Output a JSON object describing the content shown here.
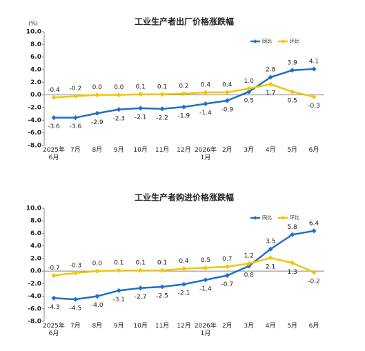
{
  "chart_data": [
    {
      "type": "line",
      "title": "工业生产者出厂价格涨跌幅",
      "y_label": "(%)",
      "categories": [
        "2025年\n6月",
        "7月",
        "8月",
        "9月",
        "10月",
        "11月",
        "12月",
        "2026年\n1月",
        "2月",
        "3月",
        "4月",
        "5月",
        "6月"
      ],
      "series": [
        {
          "name": "同比",
          "color": "#1f6fc5",
          "values": [
            -3.6,
            -3.6,
            -2.9,
            -2.3,
            -2.1,
            -2.2,
            -1.9,
            -1.4,
            -0.9,
            0.5,
            2.8,
            3.9,
            4.1
          ]
        },
        {
          "name": "环比",
          "color": "#f5c400",
          "values": [
            -0.4,
            -0.2,
            0.0,
            0.0,
            0.1,
            0.1,
            0.2,
            0.4,
            0.4,
            1.0,
            1.7,
            0.5,
            -0.3
          ],
          "value_labels": [
            "-0.4",
            "-0.2",
            "0.0",
            "0.0",
            "0.1",
            "0.1",
            "0.2",
            "0.4",
            "0.4",
            "1.0",
            "1.7",
            "0.5",
            "-0.3"
          ]
        }
      ],
      "ylim": [
        -8,
        10
      ],
      "yticks": [
        {
          "value": -8,
          "label": "-8.0"
        },
        {
          "value": -6,
          "label": "-6.0"
        },
        {
          "value": -4,
          "label": "-4.0"
        },
        {
          "value": -2,
          "label": "-2.0"
        },
        {
          "value": 0,
          "label": "0.0"
        },
        {
          "value": 2,
          "label": "2.0"
        },
        {
          "value": 4,
          "label": "4.0"
        },
        {
          "value": 6,
          "label": "6.0"
        },
        {
          "value": 8,
          "label": "8.0"
        },
        {
          "value": 10,
          "label": "10.0"
        }
      ],
      "grid": false,
      "legend": "upper right"
    },
    {
      "type": "line",
      "title": "工业生产者购进价格涨跌幅",
      "categories": [
        "2025年\n6月",
        "7月",
        "8月",
        "9月",
        "10月",
        "11月",
        "12月",
        "2026年\n1月",
        "2月",
        "3月",
        "4月",
        "5月",
        "6月"
      ],
      "series": [
        {
          "name": "同比",
          "color": "#1f6fc5",
          "values": [
            -4.3,
            -4.5,
            -4.0,
            -3.1,
            -2.7,
            -2.5,
            -2.1,
            -1.4,
            -0.7,
            0.8,
            3.5,
            5.8,
            6.4
          ],
          "value_labels": [
            "-4.3",
            "-4.5",
            "-4.0",
            "-3.1",
            "-2.7",
            "-2.5",
            "-2.1",
            "-1.4",
            "-0.7",
            "0.8",
            "3.5",
            "5.8",
            "6.4"
          ]
        },
        {
          "name": "环比",
          "color": "#f5c400",
          "values": [
            -0.7,
            -0.3,
            0.0,
            0.1,
            0.1,
            0.1,
            0.4,
            0.5,
            0.7,
            1.2,
            2.1,
            1.3,
            -0.2
          ],
          "value_labels": [
            "-0.7",
            "-0.3",
            "0.0",
            "0.1",
            "0.1",
            "0.1",
            "0.4",
            "0.5",
            "0.7",
            "1.2",
            "2.1",
            "1.3",
            "-0.2"
          ]
        }
      ],
      "ylim": [
        -8,
        10
      ],
      "yticks": [
        {
          "value": -8,
          "label": "-8.0"
        },
        {
          "value": -6,
          "label": "-6.0"
        },
        {
          "value": -4,
          "label": "-4.0"
        },
        {
          "value": -2,
          "label": "-2.0"
        },
        {
          "value": 0,
          "label": "0.0"
        },
        {
          "value": 2,
          "label": "2.0"
        },
        {
          "value": 4,
          "label": "4.0"
        },
        {
          "value": 6,
          "label": "6.0"
        },
        {
          "value": 8,
          "label": "8.0"
        },
        {
          "value": 10,
          "label": "10.0"
        }
      ],
      "grid": false,
      "legend": "upper right"
    }
  ]
}
